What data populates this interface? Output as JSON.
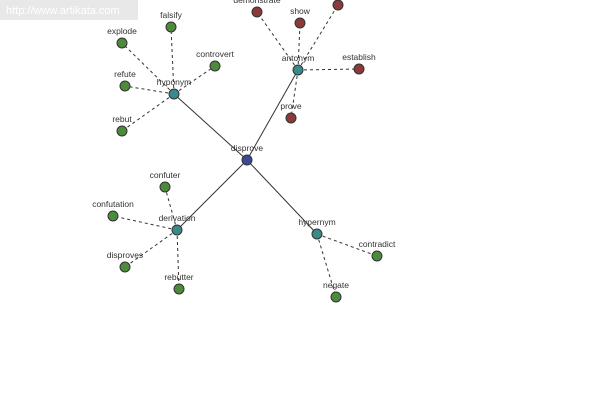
{
  "header": {
    "url": "http://www.artikata.com"
  },
  "center": {
    "label": "disprove"
  },
  "groups": [
    {
      "label": "hyponym",
      "children": [
        {
          "label": "falsify"
        },
        {
          "label": "explode"
        },
        {
          "label": "controvert"
        },
        {
          "label": "refute"
        },
        {
          "label": "rebut"
        }
      ]
    },
    {
      "label": "antonym",
      "children": [
        {
          "label": "demonstrate"
        },
        {
          "label": "show"
        },
        {
          "label": "establish"
        },
        {
          "label": "prove"
        }
      ]
    },
    {
      "label": "derivation",
      "children": [
        {
          "label": "confuter"
        },
        {
          "label": "confutation"
        },
        {
          "label": "disproves"
        },
        {
          "label": "rebutter"
        }
      ]
    },
    {
      "label": "hypernym",
      "children": [
        {
          "label": "contradict"
        },
        {
          "label": "negate"
        }
      ]
    }
  ]
}
